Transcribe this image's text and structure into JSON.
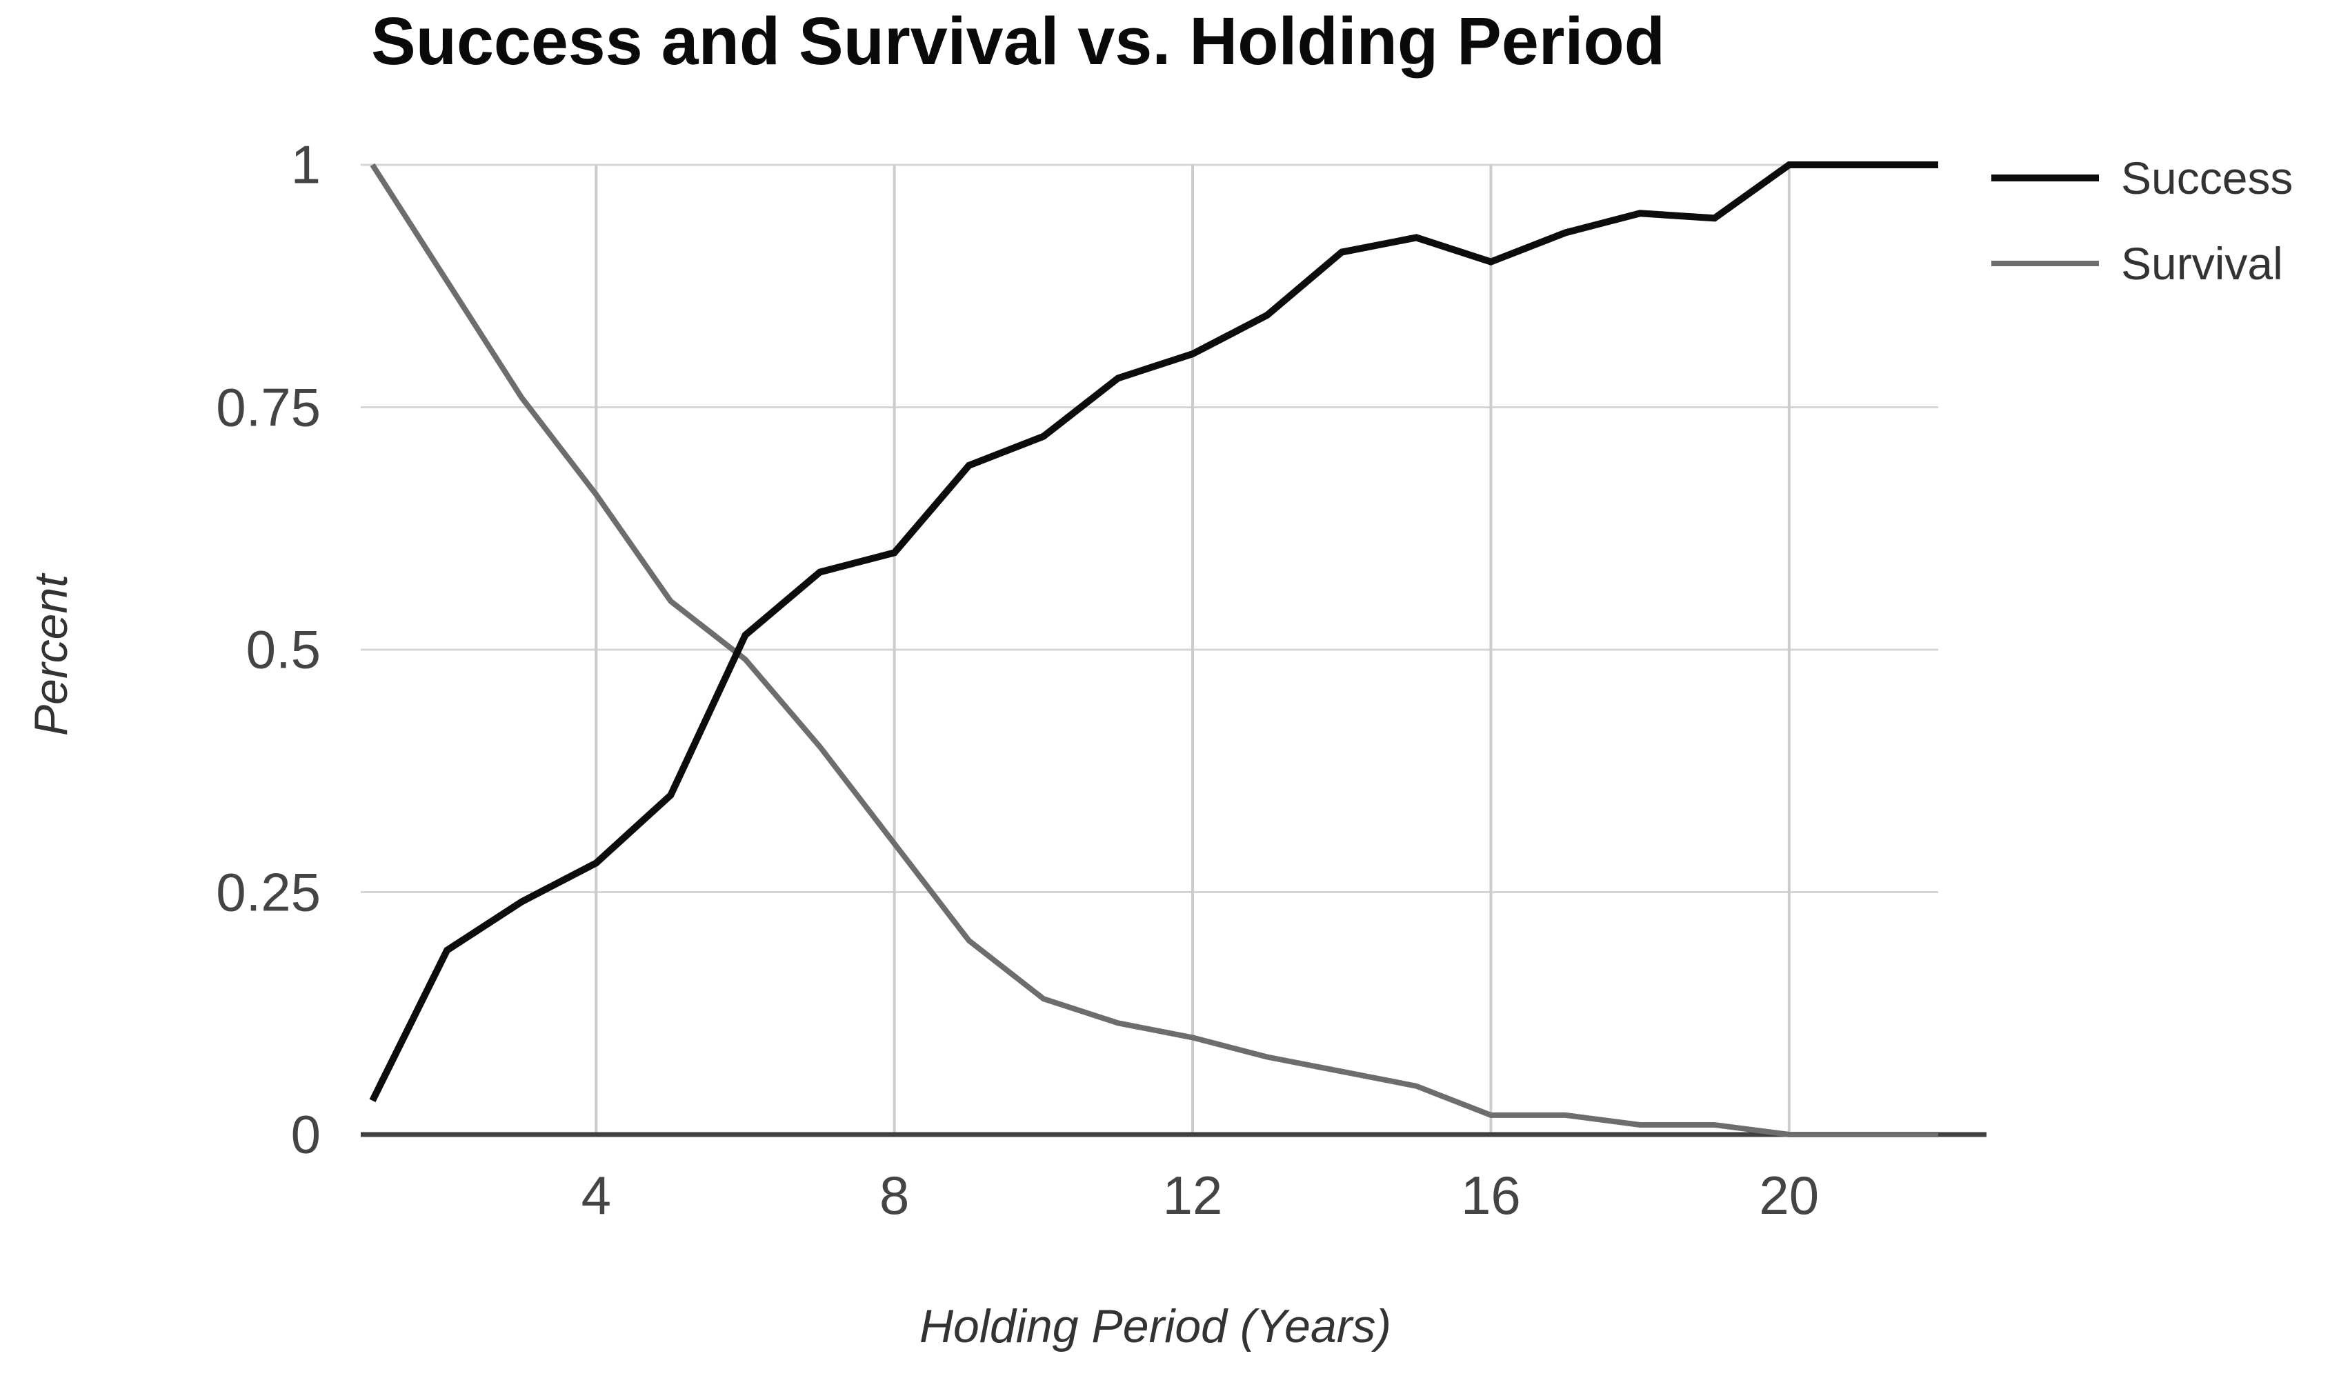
{
  "chart": {
    "title": "Success and Survival vs. Holding Period",
    "xlabel": "Holding Period (Years)",
    "ylabel": "Percent"
  },
  "chart_data": {
    "type": "line",
    "title": "Success and Survival vs. Holding Period",
    "xlabel": "Holding Period (Years)",
    "ylabel": "Percent",
    "xlim": [
      1,
      22
    ],
    "ylim": [
      0,
      1
    ],
    "xticks": [
      4,
      8,
      12,
      16,
      20
    ],
    "yticks": [
      0,
      0.25,
      0.5,
      0.75,
      1
    ],
    "ytick_labels": [
      "0",
      "0.25",
      "0.5",
      "0.75",
      "1"
    ],
    "grid": true,
    "legend_position": "top-right",
    "x": [
      1,
      2,
      3,
      4,
      5,
      6,
      7,
      8,
      9,
      10,
      11,
      12,
      13,
      14,
      15,
      16,
      17,
      18,
      19,
      20,
      21,
      22
    ],
    "series": [
      {
        "name": "Success",
        "color": "#0c0c0c",
        "line_width": 10,
        "values": [
          0.035,
          0.19,
          0.24,
          0.28,
          0.35,
          0.515,
          0.58,
          0.6,
          0.69,
          0.72,
          0.78,
          0.805,
          0.845,
          0.91,
          0.925,
          0.9,
          0.93,
          0.95,
          0.945,
          1.0,
          1.0,
          1.0
        ]
      },
      {
        "name": "Survival",
        "color": "#6d6d6d",
        "line_width": 8,
        "values": [
          1.0,
          0.88,
          0.76,
          0.66,
          0.55,
          0.49,
          0.4,
          0.3,
          0.2,
          0.14,
          0.115,
          0.1,
          0.08,
          0.065,
          0.05,
          0.02,
          0.02,
          0.01,
          0.01,
          0.0,
          0.0,
          0.0
        ]
      }
    ],
    "axis_color": "#404040",
    "gridline_color": "#cccccc"
  }
}
